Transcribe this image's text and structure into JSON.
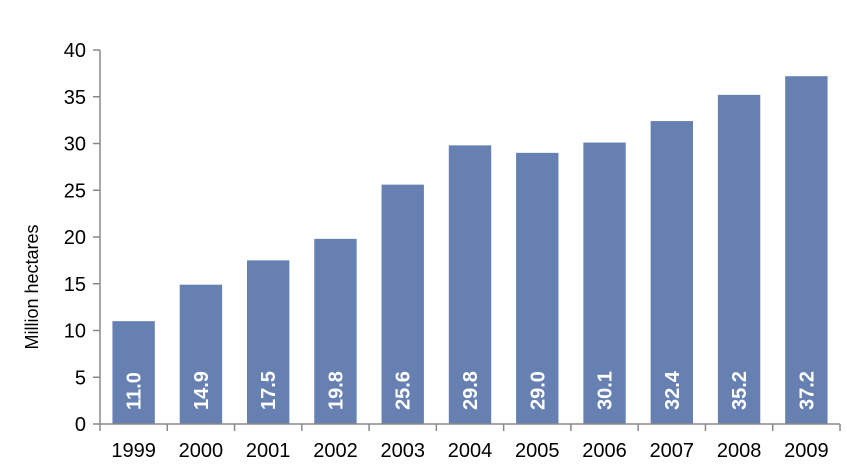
{
  "chart_data": {
    "type": "bar",
    "title": "",
    "xlabel": "",
    "ylabel": "Million hectares",
    "ylim": [
      0,
      40
    ],
    "yticks": [
      0,
      5,
      10,
      15,
      20,
      25,
      30,
      35,
      40
    ],
    "grid": false,
    "legend": "none",
    "bar_color": "#6680b2",
    "categories": [
      "1999",
      "2000",
      "2001",
      "2002",
      "2003",
      "2004",
      "2005",
      "2006",
      "2007",
      "2008",
      "2009"
    ],
    "values": [
      11.0,
      14.9,
      17.5,
      19.8,
      25.6,
      29.8,
      29.0,
      30.1,
      32.4,
      35.2,
      37.2
    ],
    "data_labels": [
      "11.0",
      "14.9",
      "17.5",
      "19.8",
      "25.6",
      "29.8",
      "29.0",
      "30.1",
      "32.4",
      "35.2",
      "37.2"
    ]
  }
}
